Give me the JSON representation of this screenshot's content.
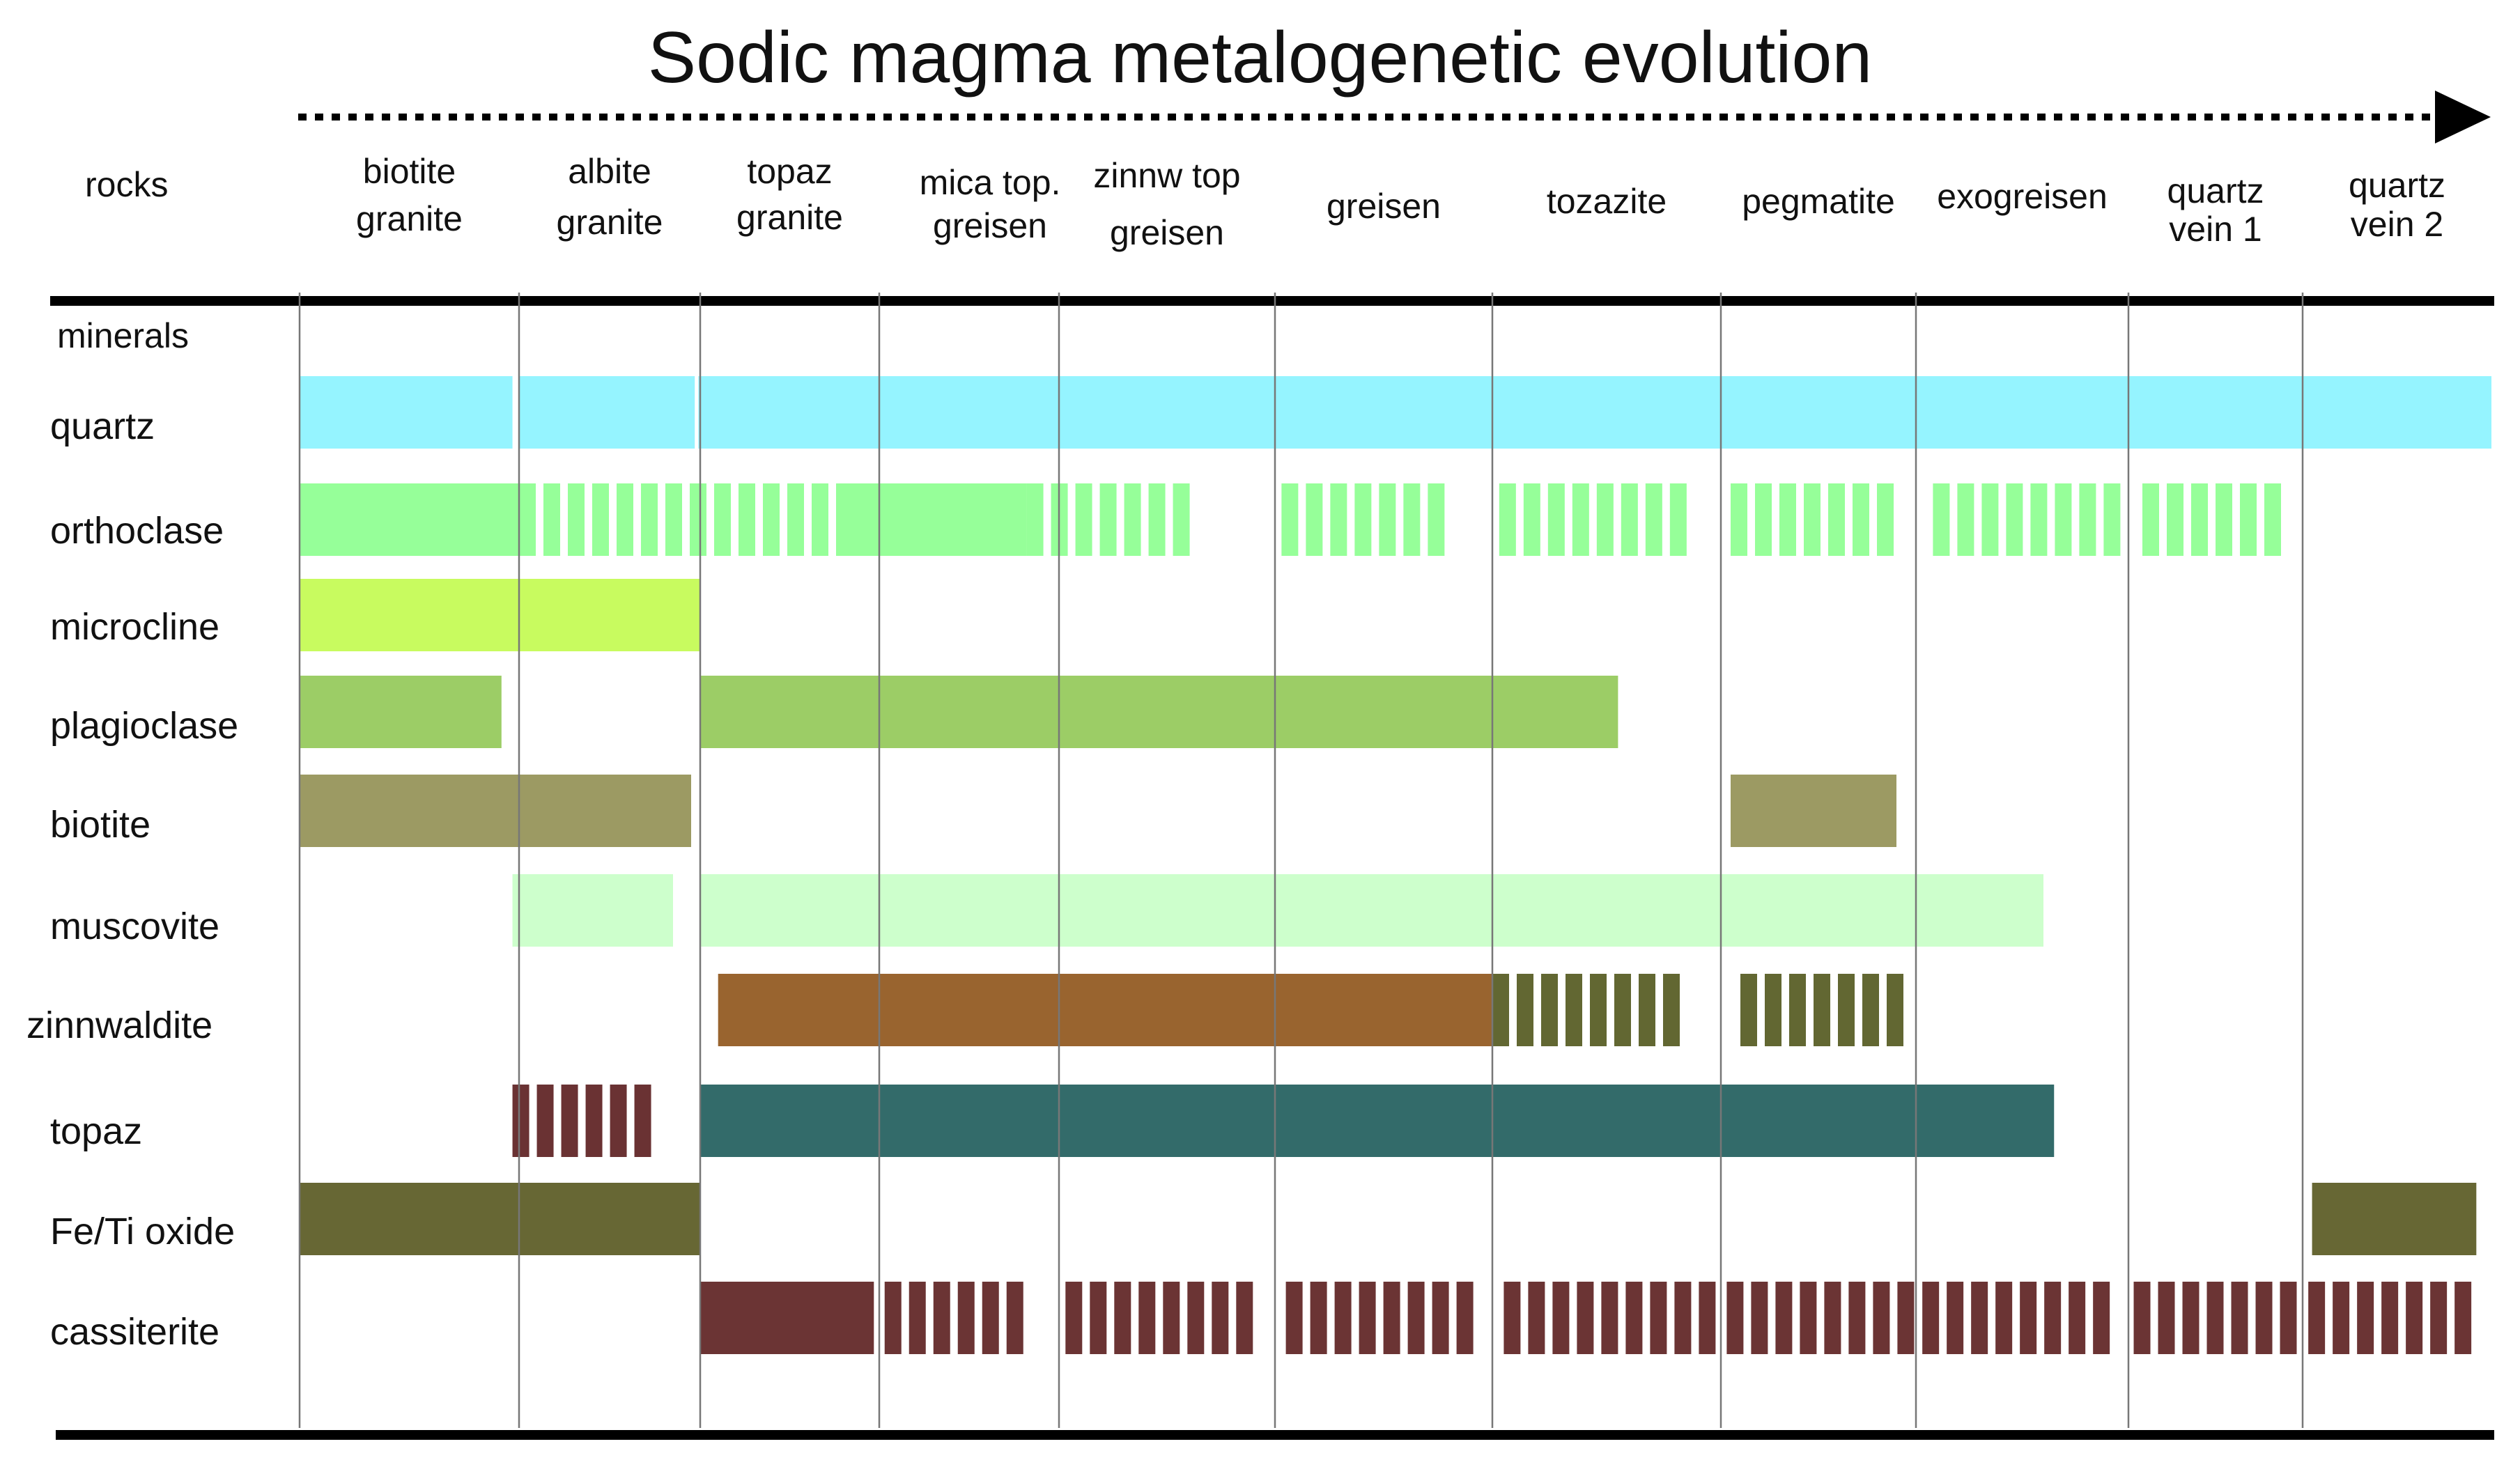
{
  "title": "Sodic magma metalogenetic evolution",
  "rocks_label": "rocks",
  "minerals_label": "minerals",
  "rocks": [
    {
      "line1": "biotite",
      "line2": "granite"
    },
    {
      "line1": "albite",
      "line2": "granite"
    },
    {
      "line1": "topaz",
      "line2": "granite"
    },
    {
      "line1": "mica top.",
      "line2": "greisen"
    },
    {
      "line1": "zinnw top",
      "line2": "greisen"
    },
    {
      "line1": "greisen",
      "line2": ""
    },
    {
      "line1": "tozazite",
      "line2": ""
    },
    {
      "line1": "pegmatite",
      "line2": ""
    },
    {
      "line1": "exogreisen",
      "line2": ""
    },
    {
      "line1": "quartz",
      "line2": "vein  1"
    },
    {
      "line1": "quartz",
      "line2": "vein 2"
    }
  ],
  "minerals": [
    {
      "name": "quartz",
      "color": "#95f4ff",
      "segments": [
        [
          0,
          0.97,
          "solid"
        ],
        [
          1.0,
          0.97,
          "solid"
        ],
        [
          1.99,
          9.95,
          "solid"
        ]
      ]
    },
    {
      "name": "orthoclase",
      "color": "#96ff99",
      "segments": [
        [
          0,
          1,
          "solid"
        ],
        [
          1,
          1.85,
          "dashed"
        ],
        [
          2.85,
          0.97,
          "solid"
        ],
        [
          3.82,
          0.85,
          "dashed"
        ],
        [
          5.03,
          0.82,
          "dashed"
        ],
        [
          6.03,
          0.92,
          "dashed"
        ],
        [
          7.05,
          0.92,
          "dashed"
        ],
        [
          8.08,
          0.92,
          "dashed"
        ],
        [
          9.08,
          0.92,
          "dashed"
        ]
      ]
    },
    {
      "name": "microcline",
      "color": "#c8fb5f",
      "segments": [
        [
          0,
          2,
          "solid"
        ]
      ]
    },
    {
      "name": "plagioclase",
      "color": "#9ccd66",
      "segments": [
        [
          0,
          0.92,
          "solid"
        ],
        [
          2,
          4.55,
          "solid"
        ]
      ]
    },
    {
      "name": "biotite",
      "color": "#9c9a63",
      "segments": [
        [
          0,
          1.95,
          "solid"
        ],
        [
          7.05,
          0.85,
          "solid"
        ]
      ]
    },
    {
      "name": "muscovite",
      "color": "#cdffcc",
      "segments": [
        [
          0.97,
          0.88,
          "solid"
        ],
        [
          2,
          6.6,
          "solid"
        ]
      ]
    },
    {
      "name": "zinnwaldite",
      "color": "#99642f",
      "alt_color": "#626732",
      "segments": [
        [
          2.1,
          3.9,
          "solid"
        ],
        [
          6.0,
          0.92,
          "dashed-alt"
        ],
        [
          7.1,
          0.92,
          "dashed-alt"
        ]
      ]
    },
    {
      "name": "topaz",
      "color": "#336b6a",
      "alt_color": "#6a3233",
      "segments": [
        [
          0.97,
          0.85,
          "dashed-alt"
        ],
        [
          2,
          6.65,
          "solid"
        ]
      ]
    },
    {
      "name": "Fe/Ti oxide",
      "color": "#676734",
      "segments": [
        [
          0,
          2,
          "solid"
        ],
        [
          10.05,
          0.87,
          "solid"
        ]
      ]
    },
    {
      "name": "cassiterite",
      "color": "#6b3434",
      "segments": [
        [
          2,
          0.97,
          "solid"
        ],
        [
          3.03,
          0.9,
          "dashed"
        ],
        [
          4.03,
          0.93,
          "dashed"
        ],
        [
          5.05,
          0.92,
          "dashed"
        ],
        [
          6.05,
          0.97,
          "dashed"
        ],
        [
          7.03,
          0.97,
          "dashed"
        ],
        [
          8.03,
          0.95,
          "dashed"
        ],
        [
          9.03,
          0.95,
          "dashed"
        ],
        [
          10.03,
          0.95,
          "dashed"
        ]
      ]
    }
  ],
  "colors": {
    "axis": "#000000",
    "gridline": "#777777",
    "text": "#111111"
  }
}
